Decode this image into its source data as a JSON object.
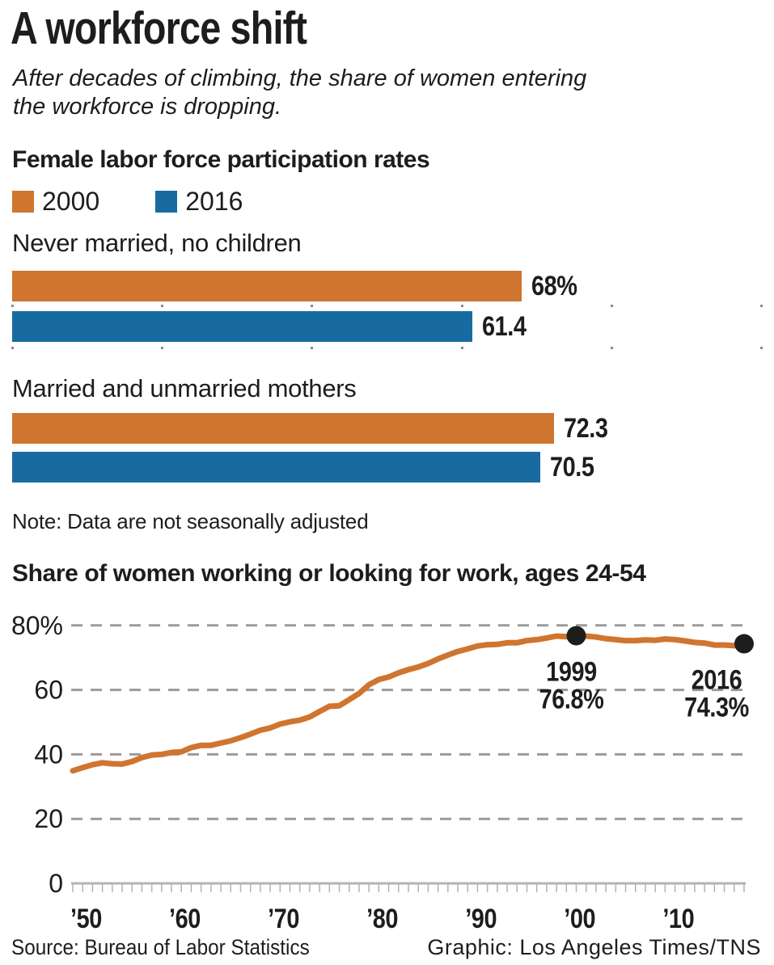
{
  "header": {
    "title": "A workforce shift",
    "subtitle_lines": [
      "After decades of climbing, the share of women entering",
      "the workforce is dropping."
    ]
  },
  "chart_data": [
    {
      "type": "bar",
      "title": "Female labor force participation rates",
      "legend": [
        {
          "label": "2000",
          "color": "#d0752f"
        },
        {
          "label": "2016",
          "color": "#186ba1"
        }
      ],
      "xlim": [
        0,
        100
      ],
      "axis_ticks": [
        0,
        20,
        40,
        60,
        80,
        100
      ],
      "groups": [
        {
          "category": "Never married, no children",
          "axis_dots": true,
          "bars": [
            {
              "series": "2000",
              "value": 68,
              "label": "68%"
            },
            {
              "series": "2016",
              "value": 61.4,
              "label": "61.4"
            }
          ]
        },
        {
          "category": "Married and unmarried mothers",
          "axis_dots": false,
          "bars": [
            {
              "series": "2000",
              "value": 72.3,
              "label": "72.3"
            },
            {
              "series": "2016",
              "value": 70.5,
              "label": "70.5"
            }
          ]
        }
      ],
      "note": "Note: Data are not seasonally adjusted"
    },
    {
      "type": "line",
      "title": "Share of women working or looking for work, ages 24-54",
      "line_color": "#d0752f",
      "grid": "dashed horizontal",
      "ylim": [
        0,
        80
      ],
      "y_ticks": [
        {
          "label": "80%",
          "value": 80
        },
        {
          "label": "60",
          "value": 60
        },
        {
          "label": "40",
          "value": 40
        },
        {
          "label": "20",
          "value": 20
        },
        {
          "label": "0",
          "value": 0
        }
      ],
      "x_ticks": [
        {
          "label": "’50",
          "year": 1950
        },
        {
          "label": "’60",
          "year": 1960
        },
        {
          "label": "’70",
          "year": 1970
        },
        {
          "label": "’80",
          "year": 1980
        },
        {
          "label": "’90",
          "year": 1990
        },
        {
          "label": "’00",
          "year": 2000
        },
        {
          "label": "’10",
          "year": 2010
        }
      ],
      "x_years": [
        1948,
        1949,
        1950,
        1951,
        1952,
        1953,
        1954,
        1955,
        1956,
        1957,
        1958,
        1959,
        1960,
        1961,
        1962,
        1963,
        1964,
        1965,
        1966,
        1967,
        1968,
        1969,
        1970,
        1971,
        1972,
        1973,
        1974,
        1975,
        1976,
        1977,
        1978,
        1979,
        1980,
        1981,
        1982,
        1983,
        1984,
        1985,
        1986,
        1987,
        1988,
        1989,
        1990,
        1991,
        1992,
        1993,
        1994,
        1995,
        1996,
        1997,
        1998,
        1999,
        2000,
        2001,
        2002,
        2003,
        2004,
        2005,
        2006,
        2007,
        2008,
        2009,
        2010,
        2011,
        2012,
        2013,
        2014,
        2015,
        2016
      ],
      "values": [
        34.9,
        35.9,
        36.8,
        37.4,
        37.1,
        37.0,
        37.8,
        39.0,
        39.8,
        40.0,
        40.6,
        40.8,
        42.1,
        42.8,
        42.8,
        43.5,
        44.2,
        45.2,
        46.3,
        47.5,
        48.2,
        49.4,
        50.1,
        50.6,
        51.6,
        53.3,
        54.9,
        55.1,
        57.0,
        58.9,
        61.6,
        63.2,
        64.0,
        65.3,
        66.3,
        67.1,
        68.2,
        69.6,
        70.8,
        71.9,
        72.7,
        73.6,
        74.0,
        74.1,
        74.6,
        74.6,
        75.3,
        75.6,
        76.1,
        76.7,
        76.5,
        76.8,
        76.7,
        76.4,
        75.9,
        75.6,
        75.3,
        75.3,
        75.5,
        75.4,
        75.8,
        75.6,
        75.2,
        74.7,
        74.5,
        73.9,
        73.9,
        73.7,
        74.3
      ],
      "annotations": [
        {
          "lines": [
            "1999",
            "76.8%"
          ],
          "year": 1999,
          "value": 76.8
        },
        {
          "lines": [
            "2016",
            "74.3%"
          ],
          "year": 2016,
          "value": 74.3
        }
      ]
    }
  ],
  "footer": {
    "source": "Source: Bureau of Labor Statistics",
    "credit": "Graphic: Los Angeles Times/TNS"
  }
}
